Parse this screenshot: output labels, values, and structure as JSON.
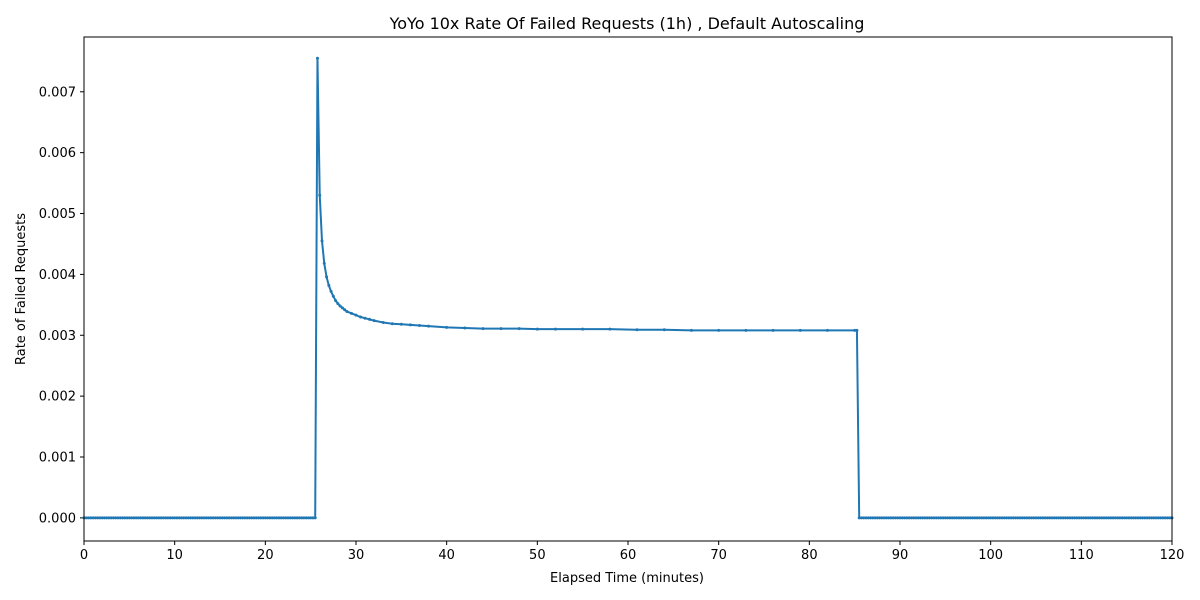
{
  "chart_data": {
    "type": "line",
    "title": "YoYo 10x Rate Of Failed Requests (1h) , Default Autoscaling",
    "xlabel": "Elapsed Time (minutes)",
    "ylabel": "Rate of Failed Requests",
    "xlim": [
      0,
      120
    ],
    "ylim": [
      -0.00038,
      0.0079
    ],
    "x_ticks": [
      0,
      10,
      20,
      30,
      40,
      50,
      60,
      70,
      80,
      90,
      100,
      110,
      120
    ],
    "y_ticks": [
      0.0,
      0.001,
      0.002,
      0.003,
      0.004,
      0.005,
      0.006,
      0.007
    ],
    "y_tick_labels": [
      "0.000",
      "0.001",
      "0.002",
      "0.003",
      "0.004",
      "0.005",
      "0.006",
      "0.007"
    ],
    "grid": false,
    "legend": "none",
    "marker": "small circle",
    "color": "#1f77b4",
    "segments": [
      {
        "x_start": 0,
        "x_end": 25.5,
        "step": 0.25,
        "value": 0
      },
      {
        "x": [
          25.75,
          26.0,
          26.25,
          26.5,
          26.75,
          27.0,
          27.25,
          27.5,
          27.75,
          28.0,
          28.25,
          28.5,
          28.75,
          29.0,
          29.5,
          30.0,
          30.5,
          31.0,
          31.5,
          32.0,
          33.0,
          34.0,
          35.0,
          36.0,
          37.0,
          38.0,
          40.0,
          42.0,
          44.0,
          46.0,
          48.0,
          50.0,
          52.0,
          55.0,
          58.0,
          61.0,
          64.0,
          67.0,
          70.0,
          73.0,
          76.0,
          79.0,
          82.0,
          85.0,
          85.25
        ],
        "y": [
          0.00755,
          0.0053,
          0.00455,
          0.00418,
          0.00396,
          0.00382,
          0.00372,
          0.00364,
          0.00357,
          0.00352,
          0.00348,
          0.00345,
          0.00342,
          0.00339,
          0.00336,
          0.00333,
          0.0033,
          0.00328,
          0.00326,
          0.00324,
          0.00321,
          0.00319,
          0.00318,
          0.00317,
          0.00316,
          0.00315,
          0.00313,
          0.00312,
          0.00311,
          0.00311,
          0.00311,
          0.0031,
          0.0031,
          0.0031,
          0.0031,
          0.00309,
          0.00309,
          0.00308,
          0.00308,
          0.00308,
          0.00308,
          0.00308,
          0.00308,
          0.00308,
          0.00308
        ]
      },
      {
        "x_start": 85.5,
        "x_end": 120,
        "step": 0.25,
        "value": 0
      }
    ]
  }
}
